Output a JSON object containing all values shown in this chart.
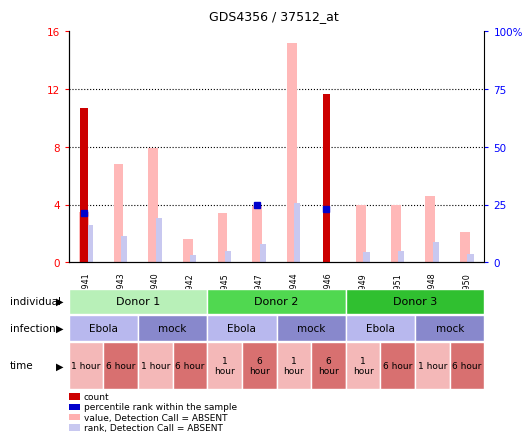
{
  "title": "GDS4356 / 37512_at",
  "samples": [
    "GSM787941",
    "GSM787943",
    "GSM787940",
    "GSM787942",
    "GSM787945",
    "GSM787947",
    "GSM787944",
    "GSM787946",
    "GSM787949",
    "GSM787951",
    "GSM787948",
    "GSM787950"
  ],
  "count_values": [
    10.7,
    0,
    0,
    0,
    0,
    0,
    0,
    11.7,
    0,
    0,
    0,
    0
  ],
  "percentile_values": [
    3.4,
    0,
    0,
    0,
    0,
    4.0,
    0,
    3.7,
    0,
    0,
    0,
    0
  ],
  "absent_value_values": [
    3.5,
    6.8,
    7.9,
    1.6,
    3.4,
    3.9,
    15.2,
    0,
    4.0,
    4.0,
    4.6,
    2.1
  ],
  "absent_rank_values": [
    2.6,
    1.8,
    3.1,
    0.5,
    0.8,
    1.3,
    4.1,
    0,
    0.7,
    0.8,
    1.4,
    0.6
  ],
  "ylim_left": [
    0,
    16
  ],
  "ylim_right": [
    0,
    100
  ],
  "yticks_left": [
    0,
    4,
    8,
    12,
    16
  ],
  "ytick_labels_left": [
    "0",
    "4",
    "8",
    "12",
    "16"
  ],
  "ytick_labels_right": [
    "0",
    "25",
    "50",
    "75",
    "100%"
  ],
  "donor_groups": [
    {
      "label": "Donor 1",
      "start": 0,
      "end": 4,
      "color": "#b8f0b8"
    },
    {
      "label": "Donor 2",
      "start": 4,
      "end": 8,
      "color": "#50d850"
    },
    {
      "label": "Donor 3",
      "start": 8,
      "end": 12,
      "color": "#30c030"
    }
  ],
  "infection_groups": [
    {
      "label": "Ebola",
      "start": 0,
      "end": 2,
      "color": "#b8b8ee"
    },
    {
      "label": "mock",
      "start": 2,
      "end": 4,
      "color": "#8888cc"
    },
    {
      "label": "Ebola",
      "start": 4,
      "end": 6,
      "color": "#b8b8ee"
    },
    {
      "label": "mock",
      "start": 6,
      "end": 8,
      "color": "#8888cc"
    },
    {
      "label": "Ebola",
      "start": 8,
      "end": 10,
      "color": "#b8b8ee"
    },
    {
      "label": "mock",
      "start": 10,
      "end": 12,
      "color": "#8888cc"
    }
  ],
  "time_groups": [
    {
      "label": "1 hour",
      "start": 0,
      "end": 1,
      "color": "#f4b8b8",
      "newline": false
    },
    {
      "label": "6 hour",
      "start": 1,
      "end": 2,
      "color": "#d87070",
      "newline": false
    },
    {
      "label": "1 hour",
      "start": 2,
      "end": 3,
      "color": "#f4b8b8",
      "newline": false
    },
    {
      "label": "6 hour",
      "start": 3,
      "end": 4,
      "color": "#d87070",
      "newline": false
    },
    {
      "label": "1\nhour",
      "start": 4,
      "end": 5,
      "color": "#f4b8b8",
      "newline": true
    },
    {
      "label": "6\nhour",
      "start": 5,
      "end": 6,
      "color": "#d87070",
      "newline": true
    },
    {
      "label": "1\nhour",
      "start": 6,
      "end": 7,
      "color": "#f4b8b8",
      "newline": true
    },
    {
      "label": "6\nhour",
      "start": 7,
      "end": 8,
      "color": "#d87070",
      "newline": true
    },
    {
      "label": "1\nhour",
      "start": 8,
      "end": 9,
      "color": "#f4b8b8",
      "newline": true
    },
    {
      "label": "6 hour",
      "start": 9,
      "end": 10,
      "color": "#d87070",
      "newline": false
    },
    {
      "label": "1 hour",
      "start": 10,
      "end": 11,
      "color": "#f4b8b8",
      "newline": false
    },
    {
      "label": "6 hour",
      "start": 11,
      "end": 12,
      "color": "#d87070",
      "newline": false
    }
  ],
  "legend_items": [
    {
      "color": "#cc0000",
      "label": "count"
    },
    {
      "color": "#0000cc",
      "label": "percentile rank within the sample"
    },
    {
      "color": "#ffb0b0",
      "label": "value, Detection Call = ABSENT"
    },
    {
      "color": "#c8c8f0",
      "label": "rank, Detection Call = ABSENT"
    }
  ]
}
